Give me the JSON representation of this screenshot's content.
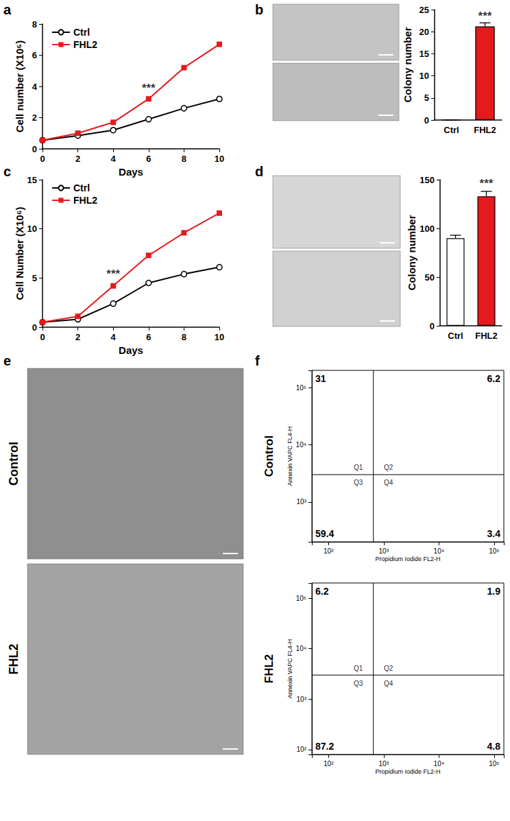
{
  "chart_data": [
    {
      "type": "line",
      "title": "a",
      "xlabel": "Days",
      "ylabel": "Cell number (X10⁵)",
      "x": [
        0,
        2,
        4,
        6,
        8,
        10
      ],
      "xlim": [
        0,
        10
      ],
      "xticks": [
        0,
        2,
        4,
        6,
        8,
        10
      ],
      "ylim": [
        0,
        8
      ],
      "yticks": [
        0,
        2,
        4,
        6,
        8
      ],
      "grid": false,
      "legend": "upper left",
      "series": [
        {
          "name": "Ctrl",
          "color": "#000000",
          "marker": "open_circle",
          "values": [
            0.55,
            0.85,
            1.2,
            1.9,
            2.6,
            3.2
          ]
        },
        {
          "name": "FHL2",
          "color": "#e41a1c",
          "marker": "square",
          "values": [
            0.55,
            1.0,
            1.7,
            3.2,
            5.2,
            6.7
          ]
        }
      ],
      "annotations": [
        {
          "text": "***",
          "x": 6,
          "y": 3.9
        }
      ]
    },
    {
      "type": "bar",
      "title": "b",
      "ylabel": "Colony number",
      "categories": [
        "Ctrl",
        "FHL2"
      ],
      "values": [
        0,
        21.2
      ],
      "errors": [
        0,
        0.8
      ],
      "colors": [
        "#ffffff",
        "#e41a1c"
      ],
      "ylim": [
        0,
        25
      ],
      "yticks": [
        0,
        5,
        10,
        15,
        20,
        25
      ],
      "grid": false,
      "annotations": [
        {
          "text": "***",
          "category": "FHL2",
          "y": 23.6
        }
      ]
    },
    {
      "type": "line",
      "title": "c",
      "xlabel": "Days",
      "ylabel": "Cell Number (X10⁶)",
      "x": [
        0,
        2,
        4,
        6,
        8,
        10
      ],
      "xlim": [
        0,
        10
      ],
      "xticks": [
        0,
        2,
        4,
        6,
        8,
        10
      ],
      "ylim": [
        0,
        15
      ],
      "yticks": [
        0,
        5,
        10,
        15
      ],
      "grid": false,
      "legend": "upper left",
      "series": [
        {
          "name": "Ctrl",
          "color": "#000000",
          "marker": "open_circle",
          "values": [
            0.5,
            0.8,
            2.4,
            4.5,
            5.4,
            6.1
          ]
        },
        {
          "name": "FHL2",
          "color": "#e41a1c",
          "marker": "square",
          "values": [
            0.5,
            1.1,
            4.2,
            7.3,
            9.6,
            11.6
          ]
        }
      ],
      "annotations": [
        {
          "text": "***",
          "x": 4,
          "y": 5.4
        }
      ]
    },
    {
      "type": "bar",
      "title": "d",
      "ylabel": "Colony number",
      "categories": [
        "Ctrl",
        "FHL2"
      ],
      "values": [
        90,
        133
      ],
      "errors": [
        3,
        5
      ],
      "colors": [
        "#ffffff",
        "#e41a1c"
      ],
      "ylim": [
        0,
        150
      ],
      "yticks": [
        0,
        50,
        100,
        150
      ],
      "grid": false,
      "annotations": [
        {
          "text": "***",
          "category": "FHL2",
          "y": 146
        }
      ]
    },
    {
      "type": "scatter",
      "title": "f",
      "subtitle": "Control",
      "xlabel": "Propidium Iodide FL2-H",
      "ylabel": "Annexin VAPC FL4-H",
      "log": true,
      "grid": false,
      "xlim": [
        50,
        150000
      ],
      "xticks": [
        {
          "value": 100,
          "label": "10²"
        },
        {
          "value": 1000,
          "label": "10³"
        },
        {
          "value": 10000,
          "label": "10⁴"
        },
        {
          "value": 100000,
          "label": "10⁵"
        }
      ],
      "ylim": [
        200,
        200000
      ],
      "yticks": [
        {
          "value": 1000,
          "label": "10³"
        },
        {
          "value": 10000,
          "label": "10⁴"
        },
        {
          "value": 100000,
          "label": "10⁵"
        }
      ],
      "gate": {
        "x": 650,
        "y": 3000
      },
      "quadrants": [
        {
          "name": "Q1",
          "percent": 31
        },
        {
          "name": "Q2",
          "percent": 6.2
        },
        {
          "name": "Q3",
          "percent": 59.4
        },
        {
          "name": "Q4",
          "percent": 3.4
        }
      ]
    },
    {
      "type": "scatter",
      "subtitle": "FHL2",
      "xlabel": "Propidium Iodide FL2-H",
      "ylabel": "Annexin VAPC FL4-H",
      "log": true,
      "grid": false,
      "xlim": [
        50,
        150000
      ],
      "xticks": [
        {
          "value": 100,
          "label": "10²"
        },
        {
          "value": 1000,
          "label": "10³"
        },
        {
          "value": 10000,
          "label": "10⁴"
        },
        {
          "value": 100000,
          "label": "10⁵"
        }
      ],
      "ylim": [
        80,
        200000
      ],
      "yticks": [
        {
          "value": 100,
          "label": "10²"
        },
        {
          "value": 1000,
          "label": "10³"
        },
        {
          "value": 10000,
          "label": "10⁴"
        },
        {
          "value": 100000,
          "label": "10⁵"
        }
      ],
      "gate": {
        "x": 650,
        "y": 3000
      },
      "quadrants": [
        {
          "name": "Q1",
          "percent": 6.2
        },
        {
          "name": "Q2",
          "percent": 1.9
        },
        {
          "name": "Q3",
          "percent": 87.2
        },
        {
          "name": "Q4",
          "percent": 4.8
        }
      ]
    }
  ],
  "image_panel": {
    "title": "e",
    "labels": [
      "Control",
      "FHL2"
    ]
  }
}
